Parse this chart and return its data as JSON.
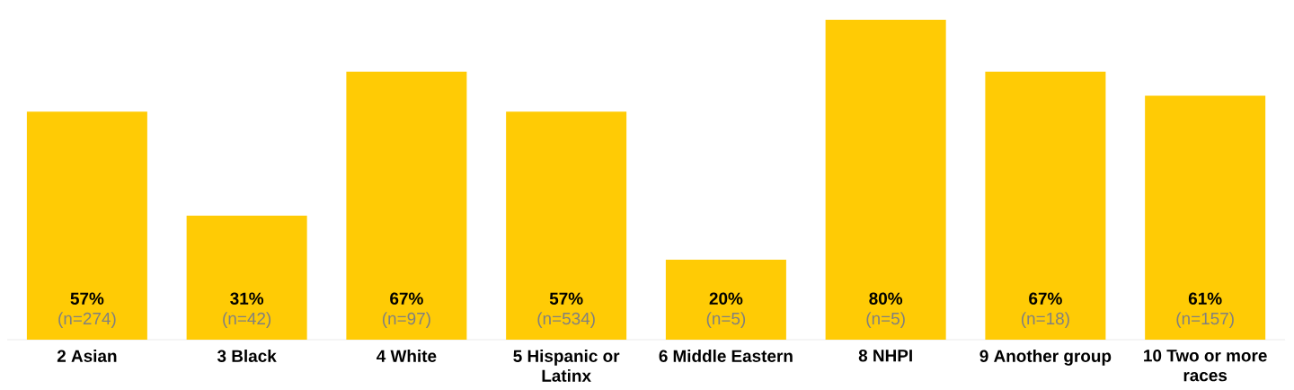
{
  "chart_data": {
    "type": "bar",
    "categories": [
      "2 Asian",
      "3 Black",
      "4 White",
      "5 Hispanic or Latinx",
      "6 Middle Eastern",
      "8 NHPI",
      "9 Another group",
      "10 Two or more races"
    ],
    "values": [
      57,
      31,
      67,
      57,
      20,
      80,
      67,
      61
    ],
    "value_labels": [
      "57%",
      "31%",
      "67%",
      "57%",
      "20%",
      "80%",
      "67%",
      "61%"
    ],
    "annotations": [
      "(n=274)",
      "(n=42)",
      "(n=97)",
      "(n=534)",
      "(n=5)",
      "(n=5)",
      "(n=18)",
      "(n=157)"
    ],
    "color": "#ffcb05",
    "ylim": [
      0,
      80
    ],
    "tick_labels": "x"
  }
}
